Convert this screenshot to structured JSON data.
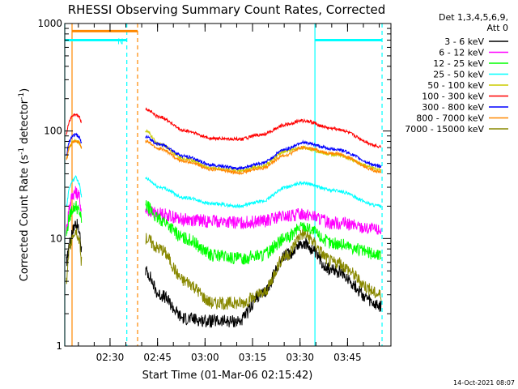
{
  "chart_data": {
    "type": "line",
    "title": "RHESSI Observing Summary Count Rates, Corrected",
    "ylabel_parts": [
      "Corrected Count Rate (s",
      "-1",
      " detector",
      "-1",
      ")"
    ],
    "xlabel": "Start Time (01-Mar-06 02:15:42)",
    "y_scale": "log",
    "ylim": [
      1,
      1000
    ],
    "y_ticks": [
      {
        "value": 1,
        "label": "1"
      },
      {
        "value": 10,
        "label": "10"
      },
      {
        "value": 100,
        "label": "100"
      },
      {
        "value": 1000,
        "label": "1000"
      }
    ],
    "xlim_minutes": [
      0,
      103
    ],
    "x_ticks": [
      {
        "minute": 14.3,
        "label": "02:30"
      },
      {
        "minute": 29.3,
        "label": "02:45"
      },
      {
        "minute": 44.3,
        "label": "03:00"
      },
      {
        "minute": 59.3,
        "label": "03:15"
      },
      {
        "minute": 74.3,
        "label": "03:30"
      },
      {
        "minute": 89.3,
        "label": "03:45"
      }
    ],
    "legend_header": [
      "Det 1,3,4,5,6,9,",
      "Att 0"
    ],
    "series": [
      {
        "name": "3 - 6 keV",
        "color": "#000000",
        "segA": [
          6,
          9,
          12,
          14,
          12,
          8
        ],
        "segB": [
          5,
          3,
          1.8,
          1.7,
          1.7,
          3,
          7,
          9,
          5,
          2.3
        ]
      },
      {
        "name": "6 - 12 keV",
        "color": "#ff00ff",
        "segA": [
          12,
          20,
          26,
          27,
          25,
          18
        ],
        "segB": [
          18,
          17,
          15,
          14.5,
          14,
          14.5,
          16,
          17,
          14,
          12
        ]
      },
      {
        "name": "12 - 25 keV",
        "color": "#00ff00",
        "segA": [
          11,
          16,
          19,
          20,
          18,
          15
        ],
        "segB": [
          20,
          15,
          10,
          7,
          6.5,
          7,
          10,
          13,
          9,
          7
        ]
      },
      {
        "name": "25 - 50 keV",
        "color": "#00ffff",
        "segA": [
          20,
          30,
          35,
          37,
          33,
          25
        ],
        "segB": [
          36,
          30,
          24,
          21,
          20,
          22,
          30,
          33,
          28,
          20
        ]
      },
      {
        "name": "50 - 100 keV",
        "color": "#cccc00",
        "segA": [
          55,
          70,
          80,
          82,
          78,
          70
        ],
        "segB": [
          100,
          75,
          55,
          45,
          43,
          47,
          65,
          70,
          60,
          44
        ]
      },
      {
        "name": "100 - 300 keV",
        "color": "#ff0000",
        "segA": [
          95,
          125,
          140,
          142,
          138,
          120
        ],
        "segB": [
          160,
          135,
          100,
          85,
          84,
          92,
          115,
          125,
          105,
          72
        ]
      },
      {
        "name": "300 - 800 keV",
        "color": "#0000ff",
        "segA": [
          60,
          80,
          90,
          92,
          88,
          78
        ],
        "segB": [
          88,
          75,
          58,
          48,
          45,
          50,
          68,
          78,
          68,
          47
        ]
      },
      {
        "name": "800 - 7000 keV",
        "color": "#ff8800",
        "segA": [
          55,
          72,
          80,
          82,
          78,
          70
        ],
        "segB": [
          80,
          68,
          52,
          44,
          41,
          45,
          60,
          70,
          62,
          42
        ]
      },
      {
        "name": "7000 - 15000 keV",
        "color": "#888800",
        "segA": [
          4,
          8,
          11,
          12,
          10,
          6
        ],
        "segB": [
          10,
          8,
          4,
          2.5,
          2.5,
          3,
          7,
          11,
          6,
          3
        ]
      }
    ],
    "segA_minutes": [
      0.5,
      1.5,
      2.5,
      3.5,
      4.5,
      5.3
    ],
    "segB_minutes": [
      25.5,
      30,
      38,
      47,
      55,
      62,
      70,
      75,
      85,
      100
    ],
    "band_markers": [
      {
        "from": 0.0,
        "to": 19.6,
        "y": 700,
        "color": "#00ffff",
        "label": "N"
      },
      {
        "from": 79.0,
        "to": 100.2,
        "y": 700,
        "color": "#00ffff",
        "label": ""
      },
      {
        "from": 2.3,
        "to": 23.0,
        "y": 850,
        "color": "#ff8800",
        "label": ""
      }
    ],
    "vlines": [
      {
        "minute": 0.0,
        "color": "#00ffff",
        "style": "solid"
      },
      {
        "minute": 2.3,
        "color": "#ff8800",
        "style": "solid"
      },
      {
        "minute": 19.6,
        "color": "#00ffff",
        "style": "dashed"
      },
      {
        "minute": 23.0,
        "color": "#ff8800",
        "style": "dashed"
      },
      {
        "minute": 79.0,
        "color": "#00ffff",
        "style": "solid"
      },
      {
        "minute": 100.2,
        "color": "#00ffff",
        "style": "dashed"
      }
    ]
  },
  "footer": {
    "timestamp": "14-Oct-2021 08:07"
  }
}
